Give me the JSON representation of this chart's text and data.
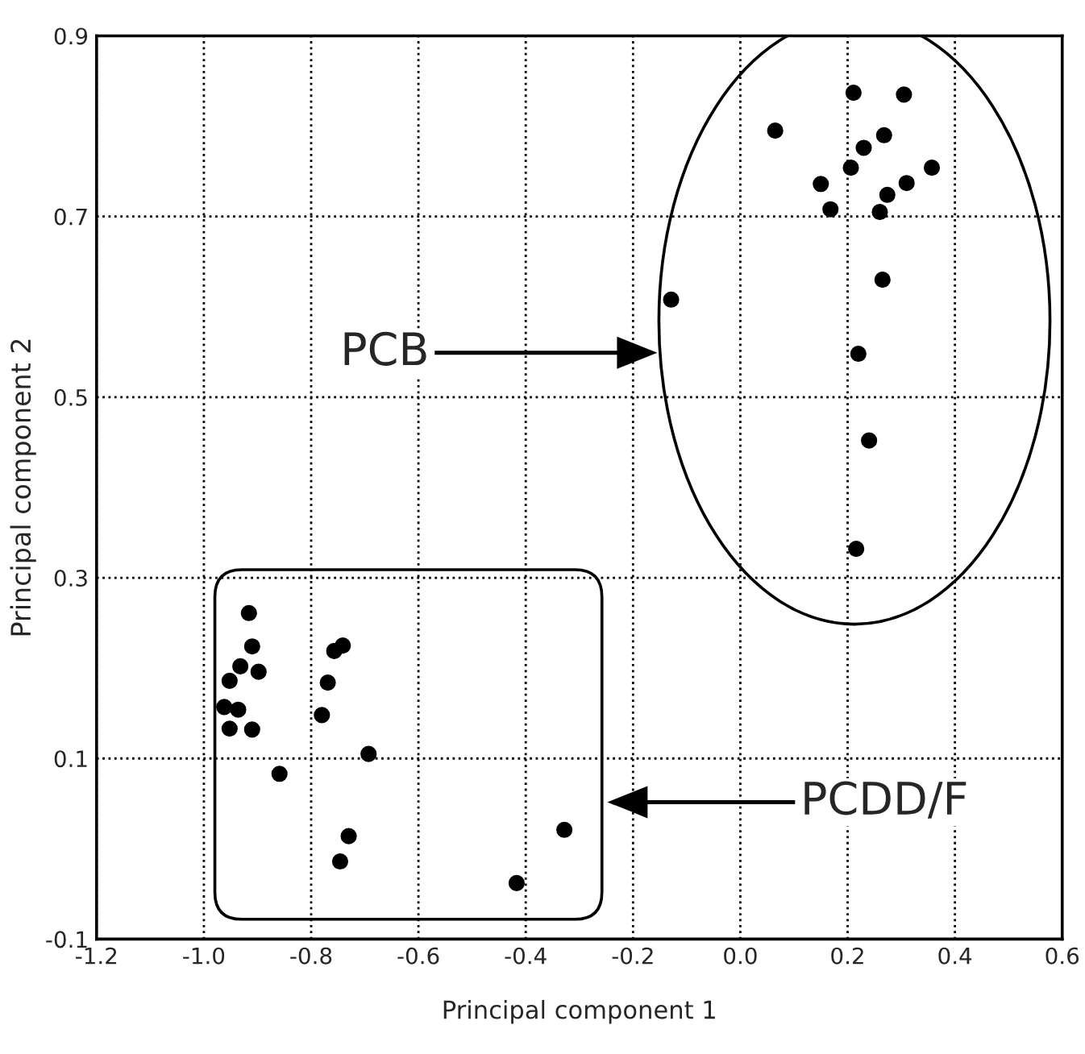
{
  "chart_data": {
    "type": "scatter",
    "xlabel": "Principal component 1",
    "ylabel": "Principal component 2",
    "xlim": [
      -1.2,
      0.6
    ],
    "ylim": [
      -0.1,
      0.9
    ],
    "xticks": [
      -1.2,
      {
        "value": -1.0,
        "label": "-1.0"
      },
      -0.8,
      -0.6,
      -0.4,
      -0.2,
      {
        "value": 0.0,
        "label": "0.0"
      },
      0.2,
      0.4,
      0.6
    ],
    "yticks": [
      -0.1,
      0.1,
      0.3,
      0.5,
      0.7,
      0.9
    ],
    "grid": true,
    "marker": "circle",
    "series": [
      {
        "color": "#000000",
        "x": [
          0.211,
          0.305,
          0.065,
          0.268,
          0.23,
          0.206,
          0.357,
          0.15,
          0.31,
          0.274,
          0.168,
          0.26,
          0.265,
          -0.129,
          0.22,
          0.24,
          0.216
        ],
        "values": [
          0.837,
          0.835,
          0.795,
          0.79,
          0.776,
          0.754,
          0.754,
          0.736,
          0.737,
          0.724,
          0.708,
          0.705,
          0.63,
          0.608,
          0.548,
          0.452,
          0.332
        ]
      },
      {
        "color": "#000000",
        "x": [
          -0.916,
          -0.91,
          -0.932,
          -0.898,
          -0.952,
          -0.962,
          -0.936,
          -0.952,
          -0.91,
          -0.859,
          -0.741,
          -0.757,
          -0.769,
          -0.78,
          -0.693,
          -0.73,
          -0.746,
          -0.328,
          -0.417
        ],
        "values": [
          0.261,
          0.224,
          0.202,
          0.196,
          0.186,
          0.157,
          0.154,
          0.133,
          0.132,
          0.083,
          0.225,
          0.219,
          0.184,
          0.148,
          0.105,
          0.014,
          -0.014,
          0.021,
          -0.038
        ]
      }
    ],
    "annotations": [
      "PCB",
      "PCDD/F"
    ]
  }
}
